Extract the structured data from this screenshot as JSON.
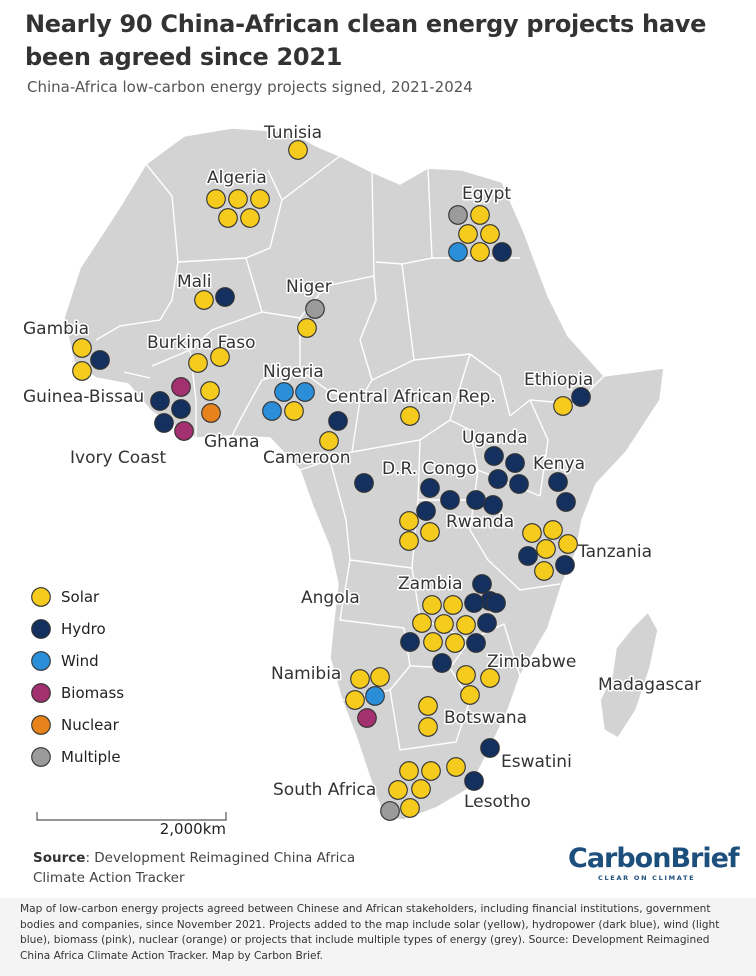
{
  "title": "Nearly 90 China-African clean energy projects have been agreed since 2021",
  "subtitle": "China-Africa low-carbon energy projects signed, 2021-2024",
  "colors": {
    "solar": "#f5cb1d",
    "hydro": "#14305e",
    "wind": "#2a8fd8",
    "biomass": "#a3306f",
    "nuclear": "#e8831c",
    "multiple": "#9b9b9b",
    "land": "#d3d3d3",
    "border": "#ffffff"
  },
  "legend": [
    {
      "key": "solar",
      "label": "Solar"
    },
    {
      "key": "hydro",
      "label": "Hydro"
    },
    {
      "key": "wind",
      "label": "Wind"
    },
    {
      "key": "biomass",
      "label": "Biomass"
    },
    {
      "key": "nuclear",
      "label": "Nuclear"
    },
    {
      "key": "multiple",
      "label": "Multiple"
    }
  ],
  "country_labels": [
    "Tunisia",
    "Algeria",
    "Egypt",
    "Mali",
    "Niger",
    "Gambia",
    "Burkina Faso",
    "Nigeria",
    "Guinea-Bissau",
    "Central African Rep.",
    "Ethiopia",
    "Ghana",
    "Ivory Coast",
    "Cameroon",
    "Uganda",
    "D.R. Congo",
    "Kenya",
    "Rwanda",
    "Tanzania",
    "Zambia",
    "Angola",
    "Zimbabwe",
    "Madagascar",
    "Namibia",
    "Botswana",
    "Eswatini",
    "South Africa",
    "Lesotho"
  ],
  "scale_bar": {
    "label": "2,000km"
  },
  "source": {
    "label": "Source",
    "text": ": Development Reimagined China Africa Climate Action Tracker"
  },
  "logo": {
    "main": "CarbonBrief",
    "tagline": "CLEAR ON CLIMATE"
  },
  "footer_note": "Map of low-carbon energy projects agreed between Chinese and African stakeholders, including financial institutions, government bodies and companies, since November 2021. Projects added to the map include solar (yellow), hydropower (dark blue), wind (light blue), biomass (pink), nuclear (orange) or projects that include multiple types of energy (grey). Source: Development Reimagined China Africa Climate Action Tracker. Map by Carbon Brief."
}
